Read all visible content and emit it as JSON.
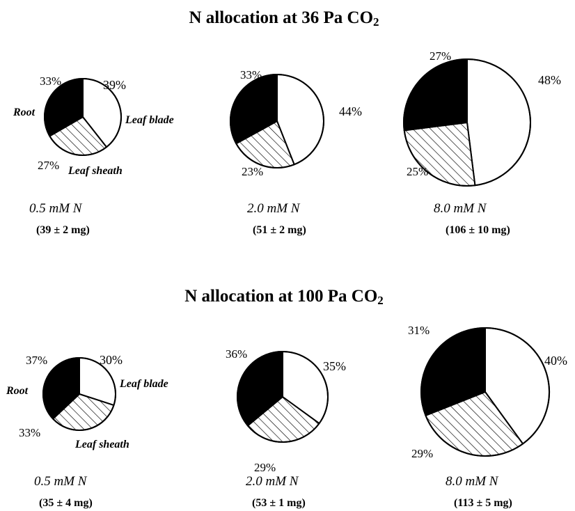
{
  "panels": [
    {
      "title": "N allocation at 36 Pa CO",
      "title_sub": "2",
      "pies": [
        {
          "n_label": "0.5 mM N",
          "mass": "(39 ± 2 mg)",
          "labels": {
            "root": "33%",
            "blade": "39%",
            "sheath": "27%"
          },
          "category_labels": {
            "root": "Root",
            "blade": "Leaf blade",
            "sheath": "Leaf sheath"
          }
        },
        {
          "n_label": "2.0 mM N",
          "mass": "(51 ± 2 mg)",
          "labels": {
            "root": "33%",
            "blade": "44%",
            "sheath": "23%"
          }
        },
        {
          "n_label": "8.0 mM N",
          "mass": "(106 ± 10 mg)",
          "labels": {
            "root": "27%",
            "blade": "48%",
            "sheath": "25%"
          }
        }
      ]
    },
    {
      "title": "N allocation at 100 Pa CO",
      "title_sub": "2",
      "pies": [
        {
          "n_label": "0.5 mM N",
          "mass": "(35 ± 4 mg)",
          "labels": {
            "root": "37%",
            "blade": "30%",
            "sheath": "33%"
          },
          "category_labels": {
            "root": "Root",
            "blade": "Leaf blade",
            "sheath": "Leaf sheath"
          }
        },
        {
          "n_label": "2.0 mM N",
          "mass": "(53 ± 1 mg)",
          "labels": {
            "root": "36%",
            "blade": "35%",
            "sheath": "29%"
          }
        },
        {
          "n_label": "8.0 mM N",
          "mass": "(113 ± 5 mg)",
          "labels": {
            "root": "31%",
            "blade": "40%",
            "sheath": "29%"
          }
        }
      ]
    }
  ],
  "chart_data": [
    {
      "type": "pie",
      "title": "N allocation at 36 Pa CO2",
      "categories": [
        "Leaf blade",
        "Leaf sheath",
        "Root"
      ],
      "fills": {
        "Leaf blade": "white",
        "Leaf sheath": "hatched",
        "Root": "black"
      },
      "series": [
        {
          "name": "0.5 mM N",
          "values": [
            39,
            27,
            33
          ]
        },
        {
          "name": "2.0 mM N",
          "values": [
            44,
            23,
            33
          ]
        },
        {
          "name": "8.0 mM N",
          "values": [
            48,
            25,
            27
          ]
        }
      ],
      "pie_size_note": [
        "(39 ± 2 mg)",
        "(51 ± 2 mg)",
        "(106 ± 10 mg)"
      ],
      "pie_size_mg": [
        39,
        51,
        106
      ]
    },
    {
      "type": "pie",
      "title": "N allocation at 100 Pa CO2",
      "categories": [
        "Leaf blade",
        "Leaf sheath",
        "Root"
      ],
      "fills": {
        "Leaf blade": "white",
        "Leaf sheath": "hatched",
        "Root": "black"
      },
      "series": [
        {
          "name": "0.5 mM N",
          "values": [
            30,
            33,
            37
          ]
        },
        {
          "name": "2.0 mM N",
          "values": [
            35,
            29,
            36
          ]
        },
        {
          "name": "8.0 mM N",
          "values": [
            40,
            29,
            31
          ]
        }
      ],
      "pie_size_note": [
        "(35 ± 4 mg)",
        "(53 ± 1 mg)",
        "(113 ± 5 mg)"
      ],
      "pie_size_mg": [
        35,
        53,
        113
      ]
    }
  ]
}
